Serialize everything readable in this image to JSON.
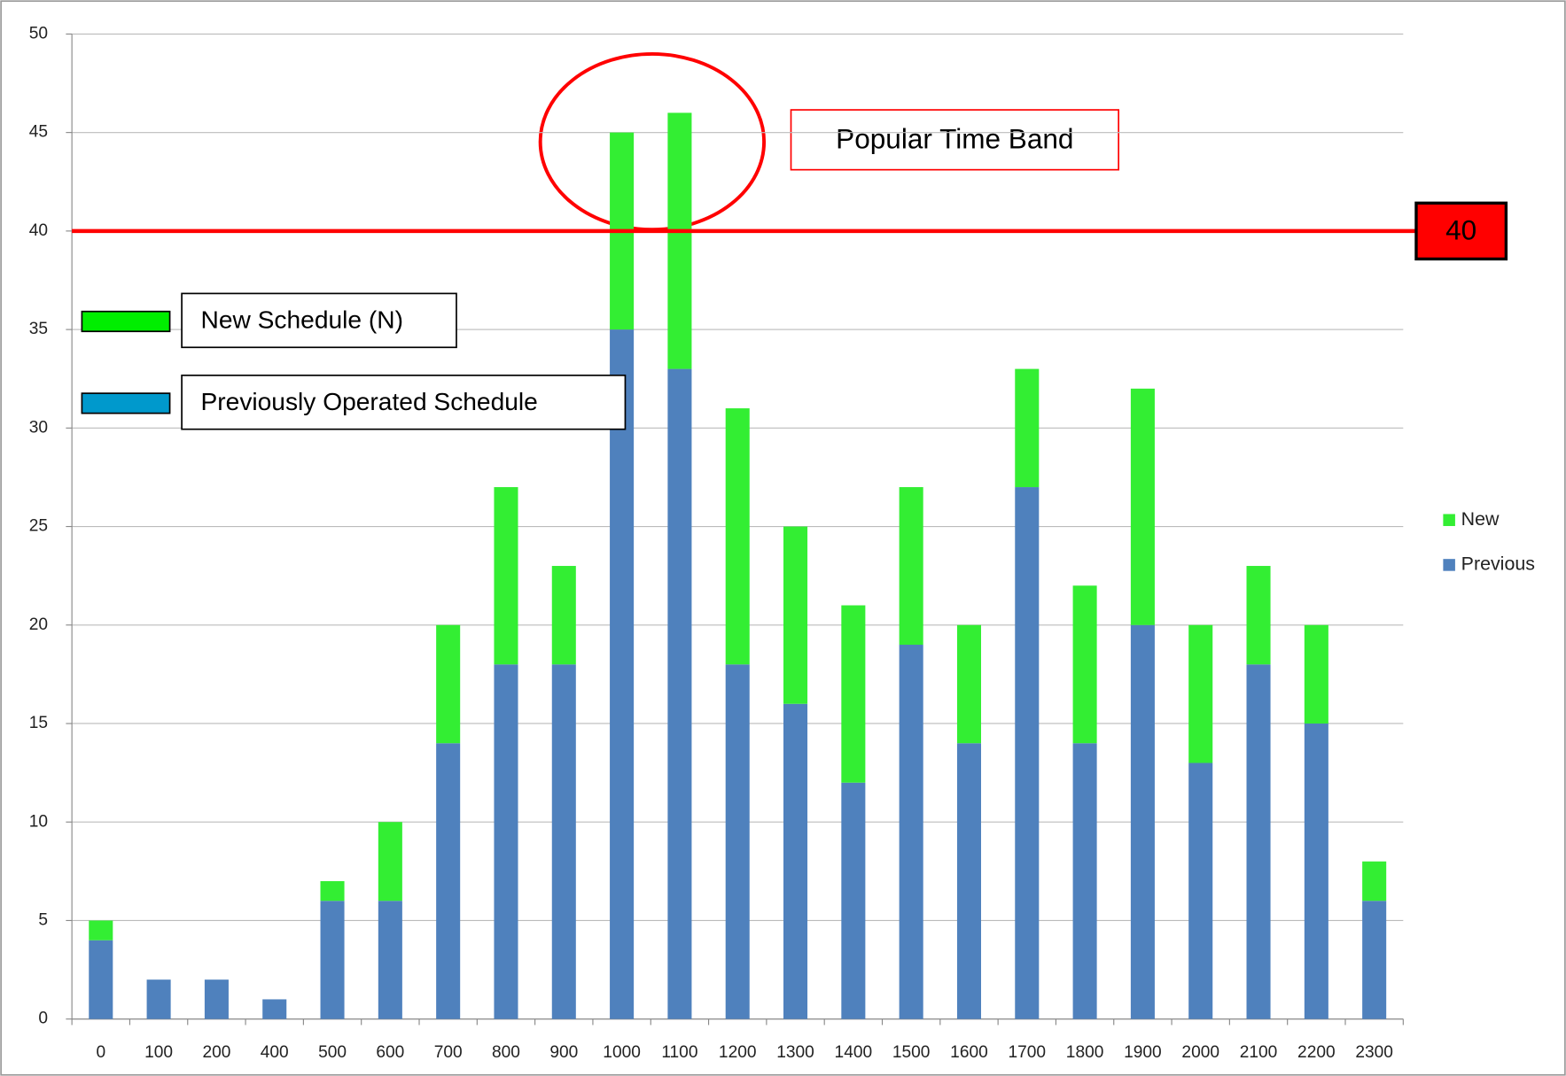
{
  "chart_data": {
    "type": "bar",
    "stacked": true,
    "categories": [
      "0",
      "100",
      "200",
      "400",
      "500",
      "600",
      "700",
      "800",
      "900",
      "1000",
      "1100",
      "1200",
      "1300",
      "1400",
      "1500",
      "1600",
      "1700",
      "1800",
      "1900",
      "2000",
      "2100",
      "2200",
      "2300"
    ],
    "series": [
      {
        "name": "Previous",
        "color": "#4f81bd",
        "values": [
          4,
          2,
          2,
          1,
          6,
          6,
          14,
          18,
          18,
          35,
          33,
          18,
          16,
          12,
          19,
          14,
          27,
          14,
          20,
          13,
          18,
          15,
          6
        ]
      },
      {
        "name": "New",
        "color": "#33ee33",
        "values": [
          1,
          0,
          0,
          0,
          1,
          4,
          6,
          9,
          5,
          10,
          13,
          13,
          9,
          9,
          8,
          6,
          6,
          8,
          12,
          7,
          5,
          5,
          2
        ]
      }
    ],
    "ylim": [
      0,
      50
    ],
    "yticks": [
      0,
      5,
      10,
      15,
      20,
      25,
      30,
      35,
      40,
      45,
      50
    ],
    "grid": true,
    "legend": "right",
    "reference_line": {
      "value": 40,
      "color": "#ff0000"
    },
    "callout": "Popular Time Band",
    "legend_boxes": [
      {
        "label": "New Schedule (N)",
        "color": "#00ee00"
      },
      {
        "label": "Previously Operated Schedule",
        "color": "#0099cc"
      }
    ]
  }
}
